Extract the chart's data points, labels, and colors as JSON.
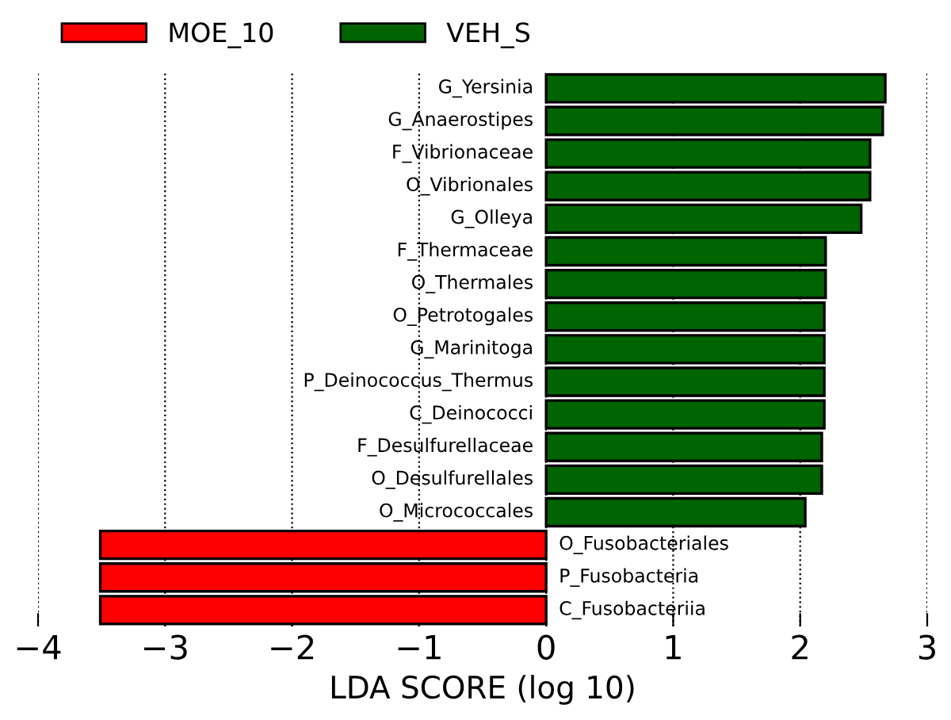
{
  "chart_data": {
    "type": "bar",
    "orientation": "horizontal",
    "xlabel": "LDA SCORE (log 10)",
    "categories": [
      "G_Yersinia",
      "G_Anaerostipes",
      "F_Vibrionaceae",
      "O_Vibrionales",
      "G_Olleya",
      "F_Thermaceae",
      "O_Thermales",
      "O_Petrotogales",
      "G_Marinitoga",
      "P_Deinococcus_Thermus",
      "C_Deinococci",
      "F_Desulfurellaceae",
      "O_Desulfurellales",
      "O_Micrococcales",
      "O_Fusobacteriales",
      "P_Fusobacteria",
      "C_Fusobacteriia"
    ],
    "series": [
      {
        "name": "MOE_10",
        "color": "#ff0000",
        "values": [
          null,
          null,
          null,
          null,
          null,
          null,
          null,
          null,
          null,
          null,
          null,
          null,
          null,
          null,
          -3.51,
          -3.51,
          -3.51
        ]
      },
      {
        "name": "VEH_S",
        "color": "#006400",
        "values": [
          2.67,
          2.65,
          2.55,
          2.55,
          2.48,
          2.2,
          2.2,
          2.19,
          2.19,
          2.19,
          2.19,
          2.17,
          2.17,
          2.04,
          null,
          null,
          null
        ]
      }
    ],
    "xlim": [
      -4,
      3
    ],
    "xticks": [
      {
        "value": -4,
        "label": "−4"
      },
      {
        "value": -3,
        "label": "−3"
      },
      {
        "value": -2,
        "label": "−2"
      },
      {
        "value": -1,
        "label": "−1"
      },
      0,
      1,
      2,
      3
    ],
    "grid": "x",
    "legend": "top left",
    "tick_labels": "x"
  }
}
